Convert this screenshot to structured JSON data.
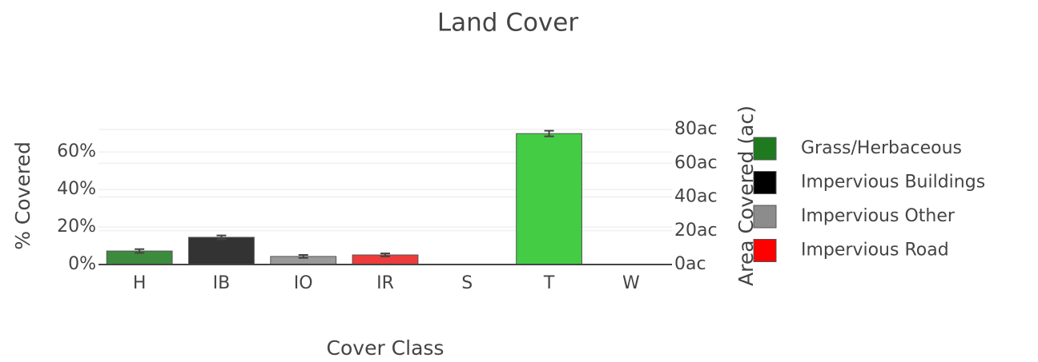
{
  "chart_data": {
    "type": "bar",
    "title": "Land Cover",
    "x_label": "Cover Class",
    "y_label": "% Covered",
    "y2_label": "Area Covered (ac)",
    "categories": [
      "H",
      "IB",
      "IO",
      "IR",
      "S",
      "T",
      "W"
    ],
    "values": [
      7.2,
      14.5,
      4.3,
      5.1,
      0,
      69.8,
      0
    ],
    "errors": [
      1,
      1,
      0.8,
      0.8,
      0,
      1.5,
      0
    ],
    "colors": [
      "#3d8b3d",
      "#333333",
      "#9a9a9a",
      "#ee3b3b",
      "#888888",
      "#44cc44",
      "#888888"
    ],
    "ylim": [
      0,
      72
    ],
    "yticks": [
      {
        "value": 0,
        "label": "0%"
      },
      {
        "value": 20,
        "label": "20%"
      },
      {
        "value": 40,
        "label": "40%"
      },
      {
        "value": 60,
        "label": "60%"
      }
    ],
    "y2lim": [
      0,
      80
    ],
    "y2ticks": [
      {
        "value": 0,
        "label": "0ac"
      },
      {
        "value": 20,
        "label": "20ac"
      },
      {
        "value": 40,
        "label": "40ac"
      },
      {
        "value": 60,
        "label": "60ac"
      },
      {
        "value": 80,
        "label": "80ac"
      }
    ],
    "grid": true,
    "legend": [
      {
        "name": "Grass/Herbaceous",
        "color": "#1f7a1f"
      },
      {
        "name": "Impervious Buildings",
        "color": "#000000"
      },
      {
        "name": "Impervious Other",
        "color": "#8c8c8c"
      },
      {
        "name": "Impervious Road",
        "color": "#ff0000"
      }
    ]
  }
}
